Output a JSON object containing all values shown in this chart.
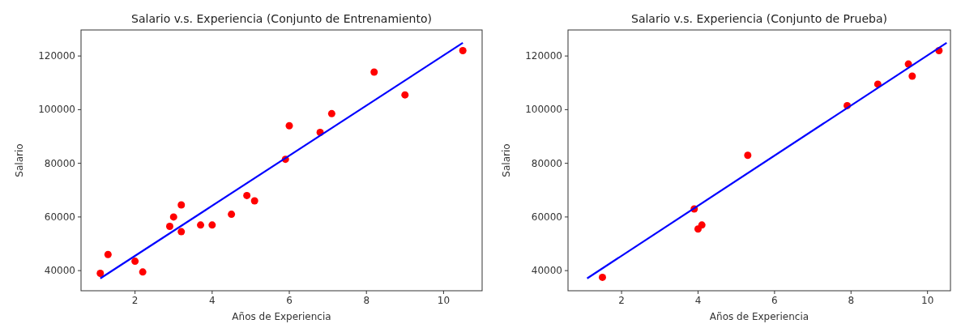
{
  "chart_data": [
    {
      "type": "scatter",
      "title": "Salario v.s. Experiencia (Conjunto de Entrenamiento)",
      "xlabel": "Años de Experiencia",
      "ylabel": "Salario",
      "xlim": [
        0.6,
        11.0
      ],
      "ylim": [
        32500,
        129700
      ],
      "xticks": [
        2,
        4,
        6,
        8,
        10
      ],
      "yticks": [
        40000,
        60000,
        80000,
        100000,
        120000
      ],
      "grid": false,
      "series": [
        {
          "color": "#ff0000",
          "marker": "circle",
          "x": [
            1.1,
            1.3,
            2.0,
            2.2,
            2.9,
            3.0,
            3.2,
            3.2,
            3.7,
            4.0,
            4.5,
            4.9,
            5.1,
            5.9,
            6.0,
            6.8,
            7.1,
            8.2,
            9.0,
            10.5
          ],
          "values": [
            39000,
            46000,
            43500,
            39500,
            56500,
            60000,
            54500,
            64500,
            57000,
            57000,
            61000,
            68000,
            66000,
            81500,
            94000,
            91500,
            98500,
            114000,
            105500,
            122000
          ]
        },
        {
          "type": "line",
          "color": "#0000ff",
          "marker": "none",
          "x": [
            1.1,
            10.5
          ],
          "values": [
            37100,
            124900
          ],
          "line_style": "solid"
        }
      ]
    },
    {
      "type": "scatter",
      "title": "Salario v.s. Experiencia (Conjunto de Prueba)",
      "xlabel": "Años de Experiencia",
      "ylabel": "Salario",
      "xlim": [
        0.6,
        10.6
      ],
      "ylim": [
        32500,
        129700
      ],
      "xticks": [
        2,
        4,
        6,
        8,
        10
      ],
      "yticks": [
        40000,
        60000,
        80000,
        100000,
        120000
      ],
      "grid": false,
      "series": [
        {
          "color": "#ff0000",
          "marker": "circle",
          "x": [
            1.5,
            3.9,
            4.0,
            4.1,
            5.3,
            7.9,
            8.7,
            9.5,
            9.6,
            10.3
          ],
          "values": [
            37500,
            63000,
            55500,
            57000,
            83000,
            101500,
            109500,
            117000,
            112500,
            122000
          ]
        },
        {
          "type": "line",
          "color": "#0000ff",
          "marker": "none",
          "x": [
            1.1,
            10.5
          ],
          "values": [
            37100,
            124900
          ],
          "line_style": "solid"
        }
      ]
    }
  ]
}
